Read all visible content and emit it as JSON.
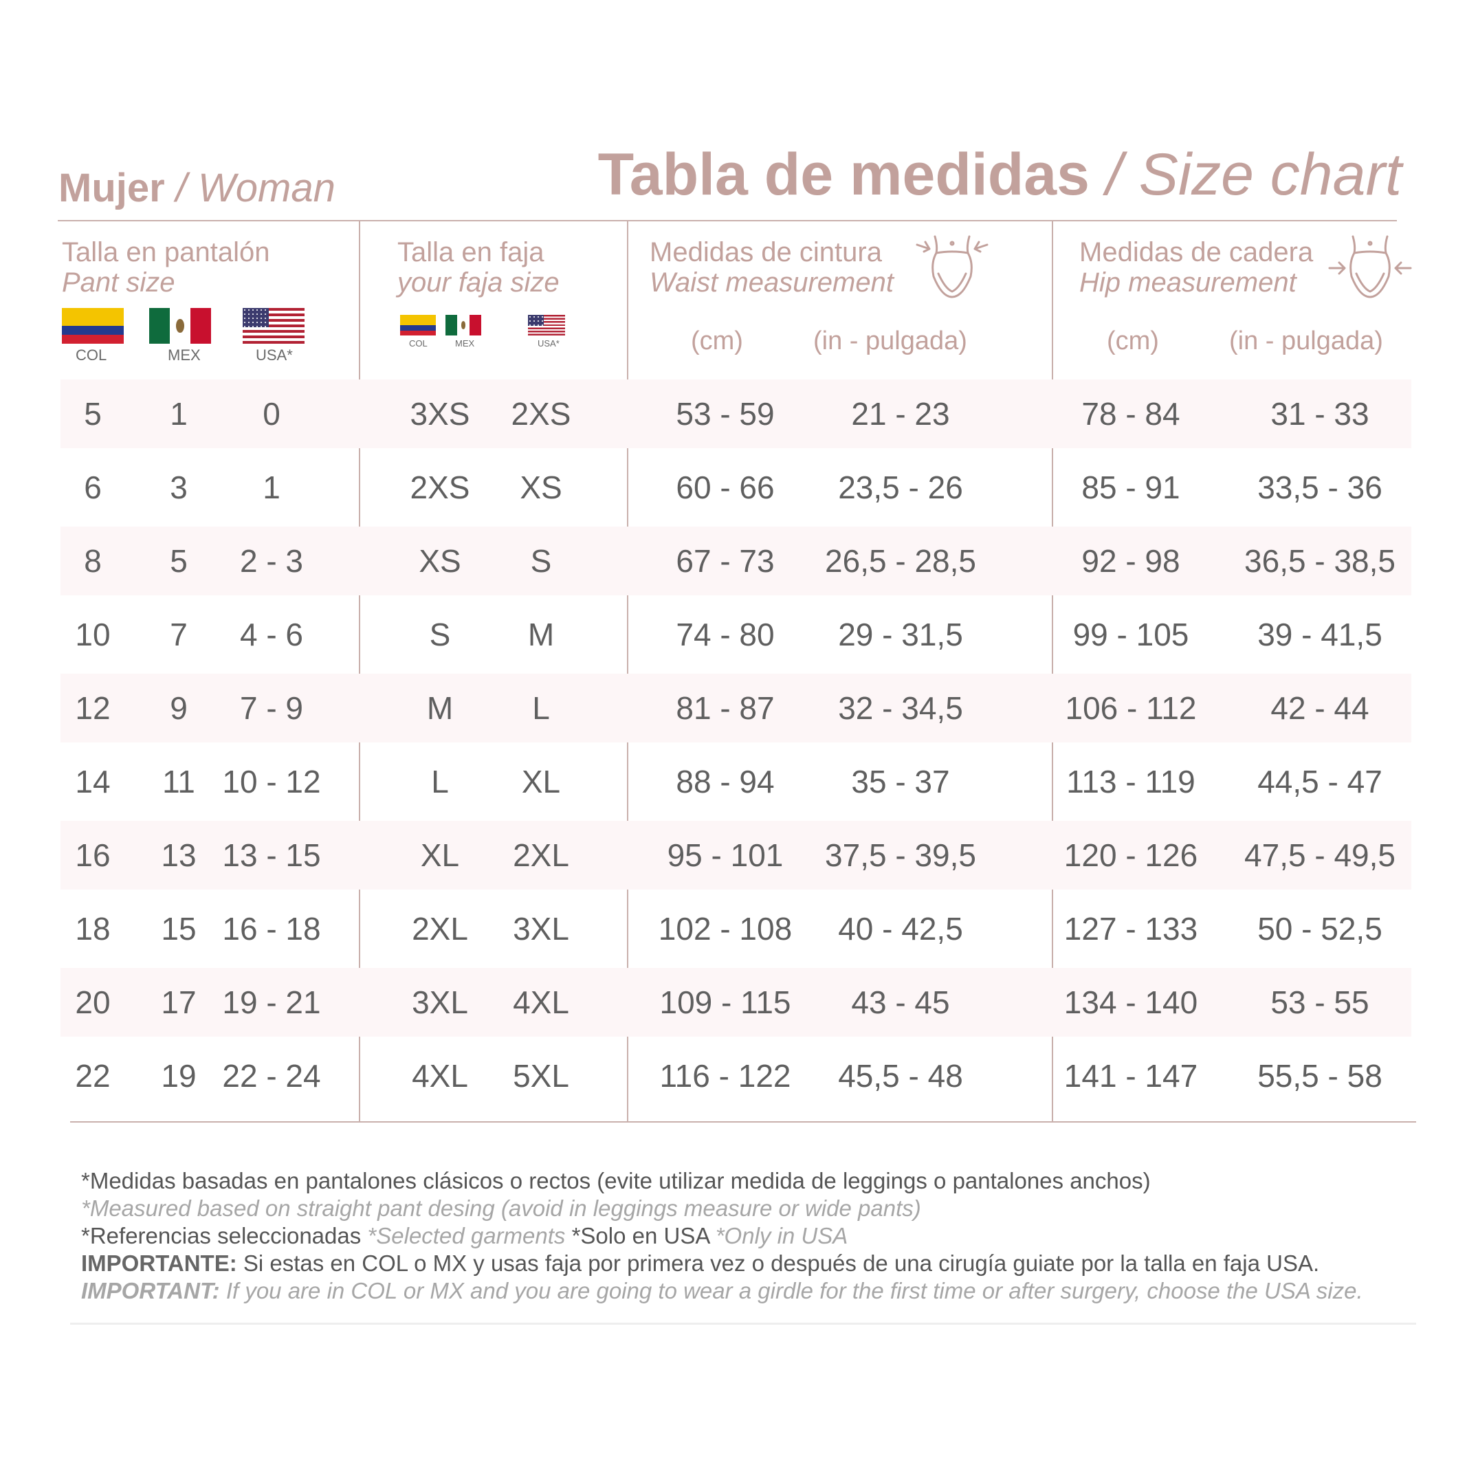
{
  "title_left": {
    "bold": "Mujer",
    "italic": " / Woman"
  },
  "title_right": {
    "bold": "Tabla de medidas",
    "italic": " / Size chart"
  },
  "columns": {
    "pant": {
      "title": "Talla en pantalón",
      "subtitle": "Pant size",
      "flags": [
        "COL",
        "MEX",
        "USA*"
      ]
    },
    "faja": {
      "title": "Talla en faja",
      "subtitle": "your faja size",
      "flags": [
        "COL",
        "MEX",
        "USA*"
      ]
    },
    "waist": {
      "title": "Medidas de cintura",
      "subtitle": "Waist measurement",
      "unit_cm": "(cm)",
      "unit_in": "(in - pulgada)"
    },
    "hip": {
      "title": "Medidas de cadera",
      "subtitle": "Hip measurement",
      "unit_cm": "(cm)",
      "unit_in": "(in - pulgada)"
    }
  },
  "rows": [
    [
      "5",
      "1",
      "0",
      "3XS",
      "2XS",
      "53 - 59",
      "21 - 23",
      "78 - 84",
      "31 - 33"
    ],
    [
      "6",
      "3",
      "1",
      "2XS",
      "XS",
      "60 - 66",
      "23,5 - 26",
      "85 - 91",
      "33,5 - 36"
    ],
    [
      "8",
      "5",
      "2 - 3",
      "XS",
      "S",
      "67 - 73",
      "26,5 - 28,5",
      "92 - 98",
      "36,5 - 38,5"
    ],
    [
      "10",
      "7",
      "4 - 6",
      "S",
      "M",
      "74 - 80",
      "29 - 31,5",
      "99 - 105",
      "39 - 41,5"
    ],
    [
      "12",
      "9",
      "7 - 9",
      "M",
      "L",
      "81 - 87",
      "32 - 34,5",
      "106 - 112",
      "42 - 44"
    ],
    [
      "14",
      "11",
      "10 - 12",
      "L",
      "XL",
      "88 - 94",
      "35 - 37",
      "113 - 119",
      "44,5 - 47"
    ],
    [
      "16",
      "13",
      "13 - 15",
      "XL",
      "2XL",
      "95 - 101",
      "37,5 - 39,5",
      "120 - 126",
      "47,5 - 49,5"
    ],
    [
      "18",
      "15",
      "16 - 18",
      "2XL",
      "3XL",
      "102 - 108",
      "40 - 42,5",
      "127 - 133",
      "50 - 52,5"
    ],
    [
      "20",
      "17",
      "19 - 21",
      "3XL",
      "4XL",
      "109 - 115",
      "43 - 45",
      "134 - 140",
      "53 - 55"
    ],
    [
      "22",
      "19",
      "22 - 24",
      "4XL",
      "5XL",
      "116 - 122",
      "45,5 - 48",
      "141 - 147",
      "55,5 - 58"
    ]
  ],
  "notes": {
    "line1": "*Medidas basadas en pantalones clásicos o rectos (evite utilizar medida de leggings o pantalones anchos)",
    "line2": "*Measured based on straight pant desing (avoid in leggings measure or wide pants)",
    "line3_a": "*Referencias seleccionadas",
    "line3_b": "*Selected garments",
    "line3_c": "*Solo en USA",
    "line3_d": "*Only in USA",
    "line4_label": "IMPORTANTE:",
    "line4_text": " Si estas en COL o MX y usas faja por primera vez o después de una cirugía guiate por la talla en faja USA.",
    "line5_label": "IMPORTANT:",
    "line5_text": " If you are in COL or MX and you are going to wear a girdle for the first time or after surgery, choose the USA size."
  },
  "icons": [
    "waist-body-icon",
    "hip-body-icon"
  ],
  "colors": {
    "accent": "#c2a19c",
    "row_shade": "#fdf6f7",
    "text": "#5f5f5f"
  }
}
